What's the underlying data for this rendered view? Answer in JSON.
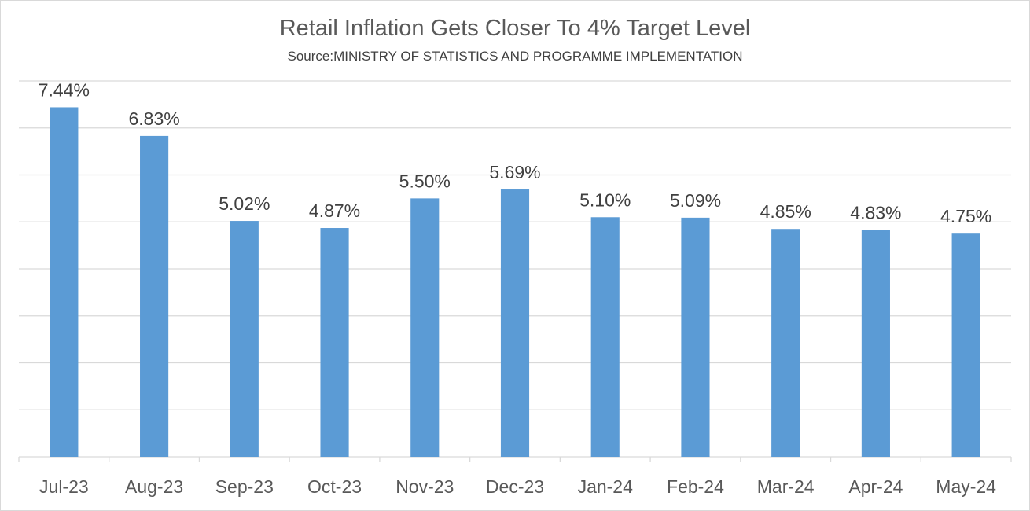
{
  "chart_data": {
    "type": "bar",
    "title": "Retail Inflation Gets Closer To 4% Target Level",
    "subtitle": "Source:MINISTRY OF STATISTICS AND PROGRAMME IMPLEMENTATION",
    "categories": [
      "Jul-23",
      "Aug-23",
      "Sep-23",
      "Oct-23",
      "Nov-23",
      "Dec-23",
      "Jan-24",
      "Feb-24",
      "Mar-24",
      "Apr-24",
      "May-24"
    ],
    "values": [
      7.44,
      6.83,
      5.02,
      4.87,
      5.5,
      5.69,
      5.1,
      5.09,
      4.85,
      4.83,
      4.75
    ],
    "data_labels": [
      "7.44%",
      "6.83%",
      "5.02%",
      "4.87%",
      "5.50%",
      "5.69%",
      "5.10%",
      "5.09%",
      "4.85%",
      "4.83%",
      "4.75%"
    ],
    "xlabel": "",
    "ylabel": "",
    "ylim": [
      0,
      8
    ],
    "grid": true,
    "y_tick_labels_visible": false,
    "legend": "none",
    "bar_color": "#5b9bd5"
  }
}
